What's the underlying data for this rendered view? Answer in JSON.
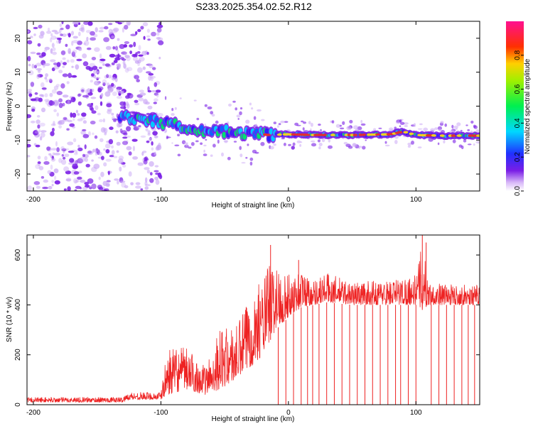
{
  "title": "S233.2025.354.02.52.R12",
  "colors": {
    "spectrogram_dot": "#7a1ee6",
    "trace_core": "#e03030",
    "snr_line": "#ee2222",
    "axis": "#000000"
  },
  "chart_data": [
    {
      "type": "heatmap",
      "name": "spectrogram",
      "title": "S233.2025.354.02.52.R12",
      "xlabel": "Height of straight line (km)",
      "ylabel": "Frequency (Hz)",
      "xlim": [
        -205,
        150
      ],
      "ylim": [
        -25,
        25
      ],
      "x_ticks": [
        -200,
        -100,
        0,
        100
      ],
      "y_ticks": [
        -20,
        -10,
        0,
        10,
        20
      ],
      "grid": false,
      "trace": {
        "x": [
          -130,
          -110,
          -90,
          -70,
          -50,
          -30,
          -15,
          0,
          20,
          50,
          80,
          90,
          100,
          120,
          150
        ],
        "freq": [
          -3,
          -4,
          -5.5,
          -7,
          -7.5,
          -8,
          -8.5,
          -8.3,
          -8.5,
          -8.5,
          -8.3,
          -7.5,
          -8.5,
          -8.7,
          -8.7
        ]
      },
      "colorbar": {
        "label": "Normalized spectral amplitude",
        "range": [
          0.0,
          1.0
        ],
        "ticks": [
          0.0,
          0.2,
          0.4,
          0.6,
          0.8
        ],
        "tick_labels": [
          "0.0",
          "0.2",
          "0.4",
          "0.6",
          "0.8"
        ],
        "colormap": "rainbow (white-violet-blue-cyan-green-yellow-red-magenta)"
      }
    },
    {
      "type": "line",
      "name": "snr",
      "xlabel": "Height of straight line (km)",
      "ylabel": "SNR (10 * v/v)",
      "xlim": [
        -205,
        150
      ],
      "ylim": [
        0,
        680
      ],
      "x_ticks": [
        -200,
        -100,
        0,
        100
      ],
      "y_ticks": [
        0,
        200,
        400,
        600
      ],
      "grid": false,
      "series": [
        {
          "name": "SNR",
          "envelope": {
            "x": [
              -205,
              -130,
              -125,
              -100,
              -95,
              -80,
              -65,
              -55,
              -40,
              -30,
              -20,
              -15,
              -10,
              0,
              10,
              20,
              30,
              50,
              80,
              100,
              105,
              110,
              130,
              150
            ],
            "low": [
              10,
              10,
              20,
              20,
              40,
              60,
              40,
              60,
              100,
              150,
              200,
              250,
              300,
              350,
              390,
              400,
              410,
              400,
              400,
              400,
              380,
              400,
              400,
              400
            ],
            "high": [
              30,
              30,
              50,
              50,
              220,
              230,
              150,
              300,
              320,
              450,
              500,
              580,
              560,
              520,
              540,
              500,
              530,
              490,
              500,
              520,
              650,
              490,
              480,
              480
            ]
          },
          "peaks": [
            {
              "x": -14,
              "y": 640
            },
            {
              "x": 8,
              "y": 580
            },
            {
              "x": 105,
              "y": 680
            },
            {
              "x": 108,
              "y": 650
            }
          ],
          "dropouts_x": [
            -8,
            -2,
            4,
            10,
            15,
            19,
            24,
            30,
            36,
            42,
            48,
            54,
            60,
            66,
            72,
            78,
            84,
            88,
            94,
            100,
            112,
            118,
            124,
            130,
            136,
            141,
            146
          ]
        }
      ]
    }
  ]
}
